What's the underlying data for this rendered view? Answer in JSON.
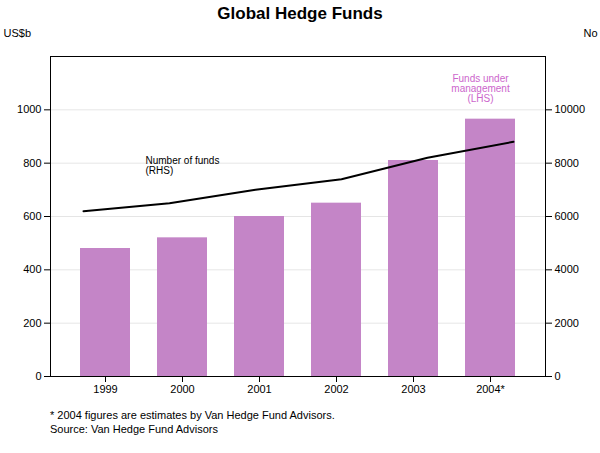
{
  "chart_data": {
    "type": "bar",
    "title": "Global Hedge Funds",
    "categories": [
      "1999",
      "2000",
      "2001",
      "2002",
      "2003",
      "2004*"
    ],
    "series": [
      {
        "type": "bar",
        "color": "#C485C7",
        "values": [
          480,
          520,
          600,
          650,
          810,
          965
        ]
      },
      {
        "type": "line",
        "axis": "y2",
        "color": "#000000",
        "values": [
          6200,
          6500,
          7000,
          7400,
          8200,
          8800
        ]
      }
    ],
    "ylabel": "US$b",
    "y2label": "No",
    "ylim": [
      0,
      1200
    ],
    "yticks": [
      0,
      200,
      400,
      600,
      800,
      1000
    ],
    "y2lim": [
      0,
      12000
    ],
    "y2ticks": [
      0,
      2000,
      4000,
      6000,
      8000,
      10000
    ],
    "grid": true,
    "annotations": [
      {
        "text": "Funds under\nmanagement\n(LHS)",
        "color": "#CC66CC"
      },
      {
        "text": "Number of funds\n(RHS)",
        "color": "#000000"
      }
    ],
    "footnotes": [
      "* 2004 figures are estimates by Van Hedge Fund Advisors.",
      "Source: Van Hedge Fund Advisors"
    ]
  }
}
